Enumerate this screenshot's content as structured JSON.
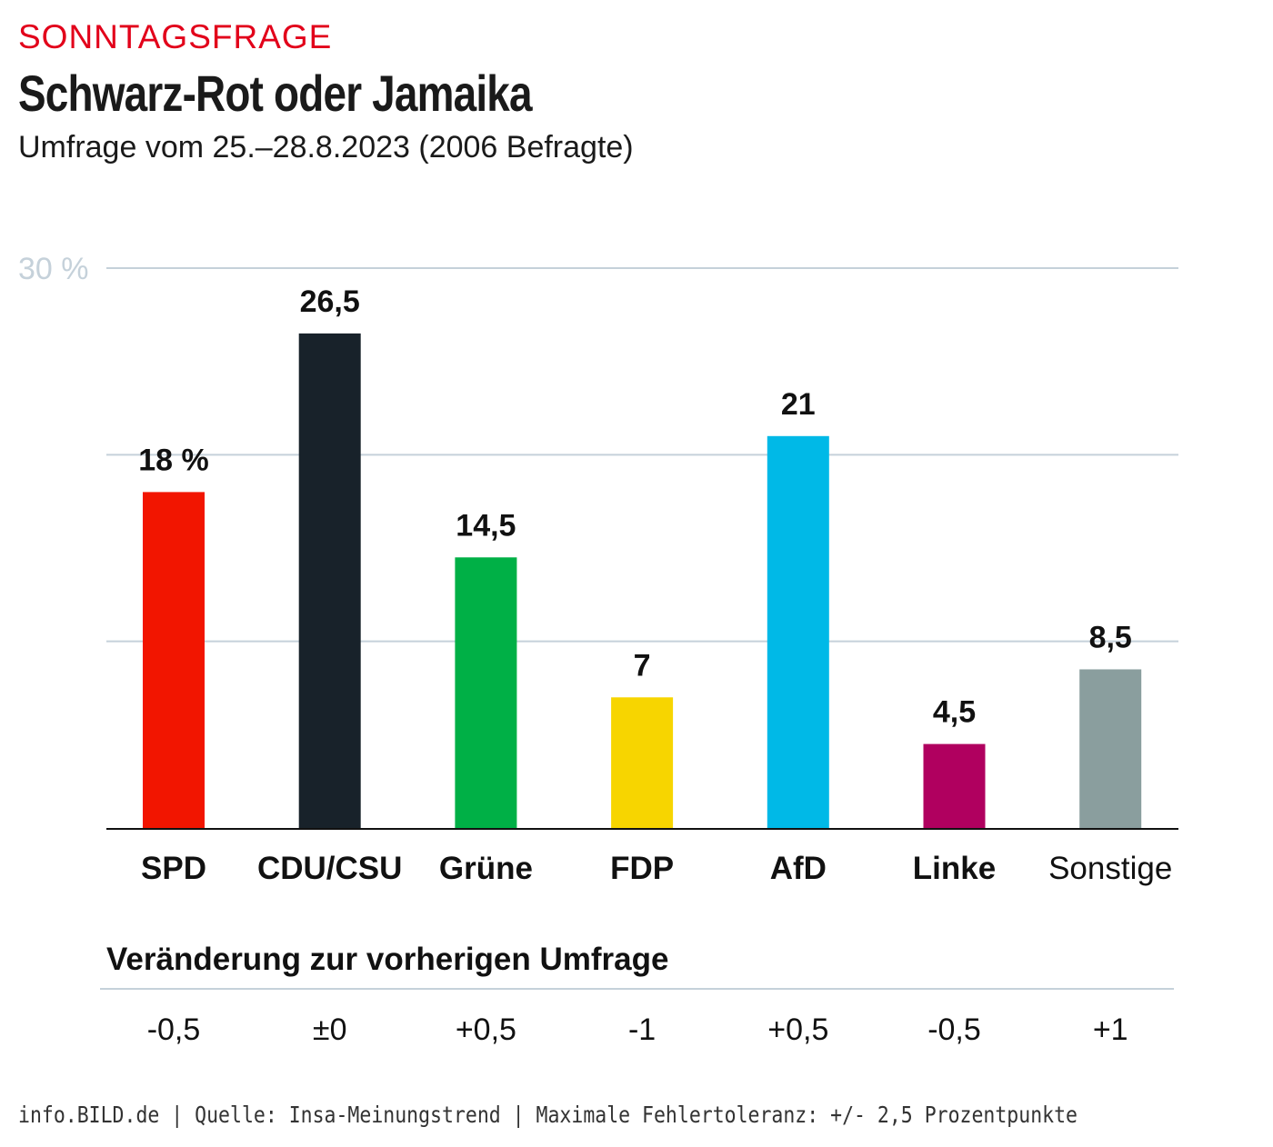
{
  "kicker": "SONNTAGSFRAGE",
  "title": "Schwarz-Rot oder Jamaika",
  "subtitle": "Umfrage vom 25.–28.8.2023 (2006 Befragte)",
  "footer": "info.BILD.de | Quelle: Insa-Meinungstrend | Maximale Fehlertoleranz: +/- 2,5 Prozentpunkte",
  "chart_data": {
    "type": "bar",
    "categories": [
      "SPD",
      "CDU/CSU",
      "Grüne",
      "FDP",
      "AfD",
      "Linke",
      "Sonstige"
    ],
    "values": [
      18,
      26.5,
      14.5,
      7,
      21,
      4.5,
      8.5
    ],
    "value_labels": [
      "18 %",
      "26,5",
      "14,5",
      "7",
      "21",
      "4,5",
      "8,5"
    ],
    "colors": [
      "#f21500",
      "#18222a",
      "#00b046",
      "#f7d500",
      "#00b9e7",
      "#b0005f",
      "#8a9e9e"
    ],
    "ylim": [
      0,
      30
    ],
    "yticks": [
      0,
      10,
      20,
      30
    ],
    "ytick_label": "30 %",
    "grid": true,
    "change_title": "Veränderung zur vorherigen Umfrage",
    "changes": [
      "-0,5",
      "±0",
      "+0,5",
      "-1",
      "+0,5",
      "-0,5",
      "+1"
    ]
  }
}
